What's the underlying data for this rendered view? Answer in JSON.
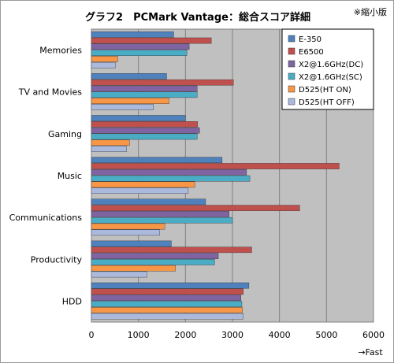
{
  "chart_data": {
    "type": "bar",
    "orientation": "horizontal",
    "title": "グラフ2　PCMark Vantage：総合スコア詳細",
    "note": "※縮小版",
    "xlabel": "→Fast",
    "xlim": [
      0,
      6000
    ],
    "xticks": [
      "0",
      "1000",
      "2000",
      "3000",
      "4000",
      "5000",
      "6000"
    ],
    "grid": true,
    "legend_position": "top-right",
    "categories": [
      "Memories",
      "TV and Movies",
      "Gaming",
      "Music",
      "Communications",
      "Productivity",
      "HDD"
    ],
    "series": [
      {
        "name": "E-350",
        "color": "#4f81bd",
        "values": [
          1750,
          1600,
          2000,
          2780,
          2430,
          1700,
          3350
        ]
      },
      {
        "name": "E6500",
        "color": "#c0504d",
        "values": [
          2550,
          3020,
          2260,
          5270,
          4430,
          3410,
          3230
        ]
      },
      {
        "name": "X2@1.6GHz(DC)",
        "color": "#8064a2",
        "values": [
          2080,
          2250,
          2300,
          3300,
          2930,
          2700,
          3180
        ]
      },
      {
        "name": "X2@1.6GHz(SC)",
        "color": "#4bacc6",
        "values": [
          2030,
          2250,
          2250,
          3370,
          3000,
          2620,
          3200
        ]
      },
      {
        "name": "D525(HT ON)",
        "color": "#f79646",
        "values": [
          560,
          1650,
          810,
          2200,
          1560,
          1790,
          3210
        ]
      },
      {
        "name": "D525(HT OFF)",
        "color": "#aab9dc",
        "values": [
          510,
          1320,
          750,
          2060,
          1450,
          1180,
          3230
        ]
      }
    ]
  }
}
